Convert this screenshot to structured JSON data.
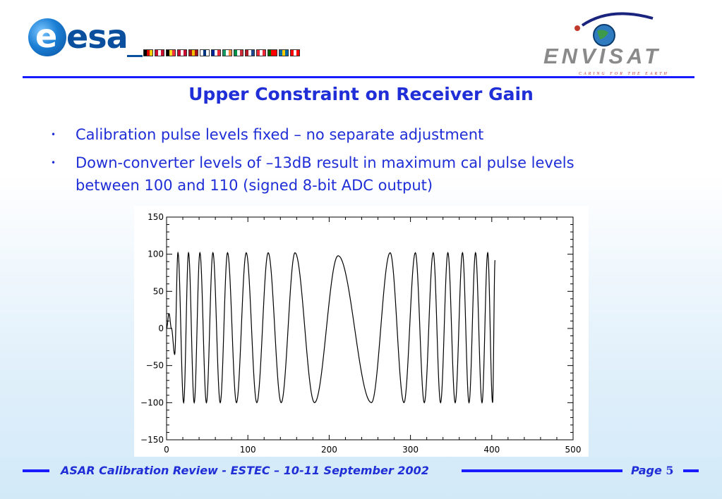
{
  "header": {
    "esa_logo_text": "esa",
    "envisat_logo_text": "ENVISAT",
    "envisat_tagline": "CARING FOR THE EARTH",
    "flag_colors": [
      [
        "#000000",
        "#dd0000",
        "#ffce00"
      ],
      [
        "#c8102e",
        "#ffffff",
        "#c8102e"
      ],
      [
        "#000000",
        "#fdda24",
        "#ef3340"
      ],
      [
        "#c60c30",
        "#ffffff",
        "#c60c30"
      ],
      [
        "#aa151b",
        "#f1bf00",
        "#aa151b"
      ],
      [
        "#ffffff",
        "#003580",
        "#ffffff"
      ],
      [
        "#002395",
        "#ffffff",
        "#ed2939"
      ],
      [
        "#169b62",
        "#ffffff",
        "#ff883e"
      ],
      [
        "#009246",
        "#ffffff",
        "#ce2b37"
      ],
      [
        "#ae1c28",
        "#ffffff",
        "#21468b"
      ],
      [
        "#ed2939",
        "#ffffff",
        "#ed2939"
      ],
      [
        "#006600",
        "#ff0000",
        "#ff0000"
      ],
      [
        "#006aa7",
        "#fecc00",
        "#006aa7"
      ],
      [
        "#ff0000",
        "#ffffff",
        "#ff0000"
      ]
    ]
  },
  "slide": {
    "title": "Upper Constraint on Receiver Gain",
    "bullets": [
      "Calibration pulse levels fixed – no separate adjustment",
      "Down-converter levels of –13dB result in maximum cal pulse levels between 100 and 110 (signed 8-bit ADC output)"
    ]
  },
  "chart_data": {
    "type": "line",
    "title": "",
    "xlabel": "",
    "ylabel": "",
    "xlim": [
      0,
      500
    ],
    "ylim": [
      -150,
      150
    ],
    "x_ticks": [
      0,
      100,
      200,
      300,
      400,
      500
    ],
    "y_ticks": [
      150,
      100,
      50,
      0,
      -50,
      -100,
      -150
    ],
    "x_tick_labels": [
      "0",
      "100",
      "200",
      "300",
      "400",
      "500"
    ],
    "y_tick_labels": [
      "150",
      "100",
      "50",
      "0",
      "−50",
      "−100",
      "−150"
    ],
    "grid": false,
    "series": [
      {
        "extrema": [
          [
            0,
            0
          ],
          [
            3,
            20
          ],
          [
            6,
            0
          ],
          [
            10,
            -35
          ],
          [
            14,
            102
          ],
          [
            21,
            -100
          ],
          [
            27,
            102
          ],
          [
            34,
            -100
          ],
          [
            41,
            102
          ],
          [
            49,
            -100
          ],
          [
            57,
            102
          ],
          [
            66,
            -100
          ],
          [
            75,
            102
          ],
          [
            86,
            -100
          ],
          [
            98,
            102
          ],
          [
            111,
            -100
          ],
          [
            125,
            102
          ],
          [
            141,
            -100
          ],
          [
            158,
            102
          ],
          [
            182,
            -100
          ],
          [
            211,
            98
          ],
          [
            252,
            -100
          ],
          [
            275,
            102
          ],
          [
            292,
            -100
          ],
          [
            306,
            102
          ],
          [
            317,
            -100
          ],
          [
            328,
            102
          ],
          [
            337,
            -100
          ],
          [
            346,
            102
          ],
          [
            355,
            -100
          ],
          [
            364,
            102
          ],
          [
            372,
            -100
          ],
          [
            380,
            102
          ],
          [
            388,
            -100
          ],
          [
            395,
            102
          ],
          [
            401,
            -100
          ],
          [
            404,
            92
          ]
        ]
      }
    ]
  },
  "footer": {
    "text": "ASAR Calibration Review - ESTEC – 10-11 September  2002",
    "page_label": "Page",
    "page_number": "5"
  }
}
